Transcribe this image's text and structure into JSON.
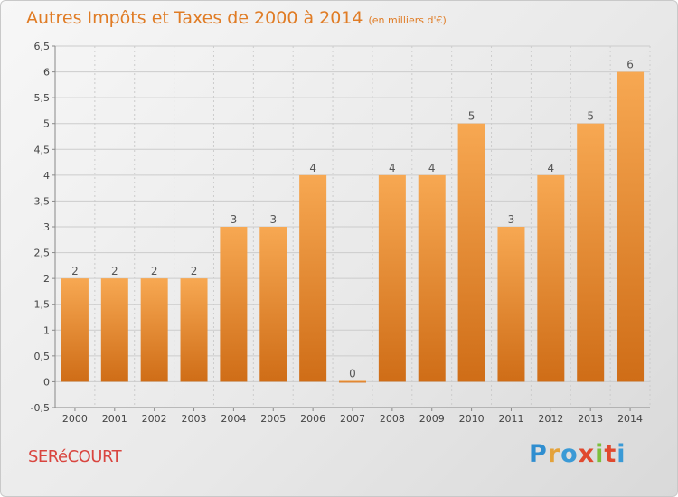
{
  "chart_data": {
    "type": "bar",
    "title": "Autres Impôts et Taxes de 2000 à 2014",
    "subtitle": "(en milliers d'€)",
    "categories": [
      "2000",
      "2001",
      "2002",
      "2003",
      "2004",
      "2005",
      "2006",
      "2007",
      "2008",
      "2009",
      "2010",
      "2011",
      "2012",
      "2013",
      "2014"
    ],
    "values": [
      2,
      2,
      2,
      2,
      3,
      3,
      4,
      0,
      4,
      4,
      5,
      3,
      4,
      5,
      6
    ],
    "data_labels": [
      "2",
      "2",
      "2",
      "2",
      "3",
      "3",
      "4",
      "0",
      "4",
      "4",
      "5",
      "3",
      "4",
      "5",
      "6"
    ],
    "ylim": [
      -0.5,
      6.5
    ],
    "yticks": [
      "-0,5",
      "0",
      "0,5",
      "1",
      "1,5",
      "2",
      "2,5",
      "3",
      "3,5",
      "4",
      "4,5",
      "5",
      "5,5",
      "6",
      "6,5"
    ],
    "grid": true,
    "colors": {
      "bar_top": "#f7a852",
      "bar_bottom": "#cf6d17",
      "label": "#555555",
      "axis": "#888888",
      "grid": "#cccccc"
    }
  },
  "footer": {
    "place": "SERéCOURT",
    "logo_letters": [
      "P",
      "r",
      "o",
      "x",
      "i",
      "t",
      "i"
    ]
  }
}
